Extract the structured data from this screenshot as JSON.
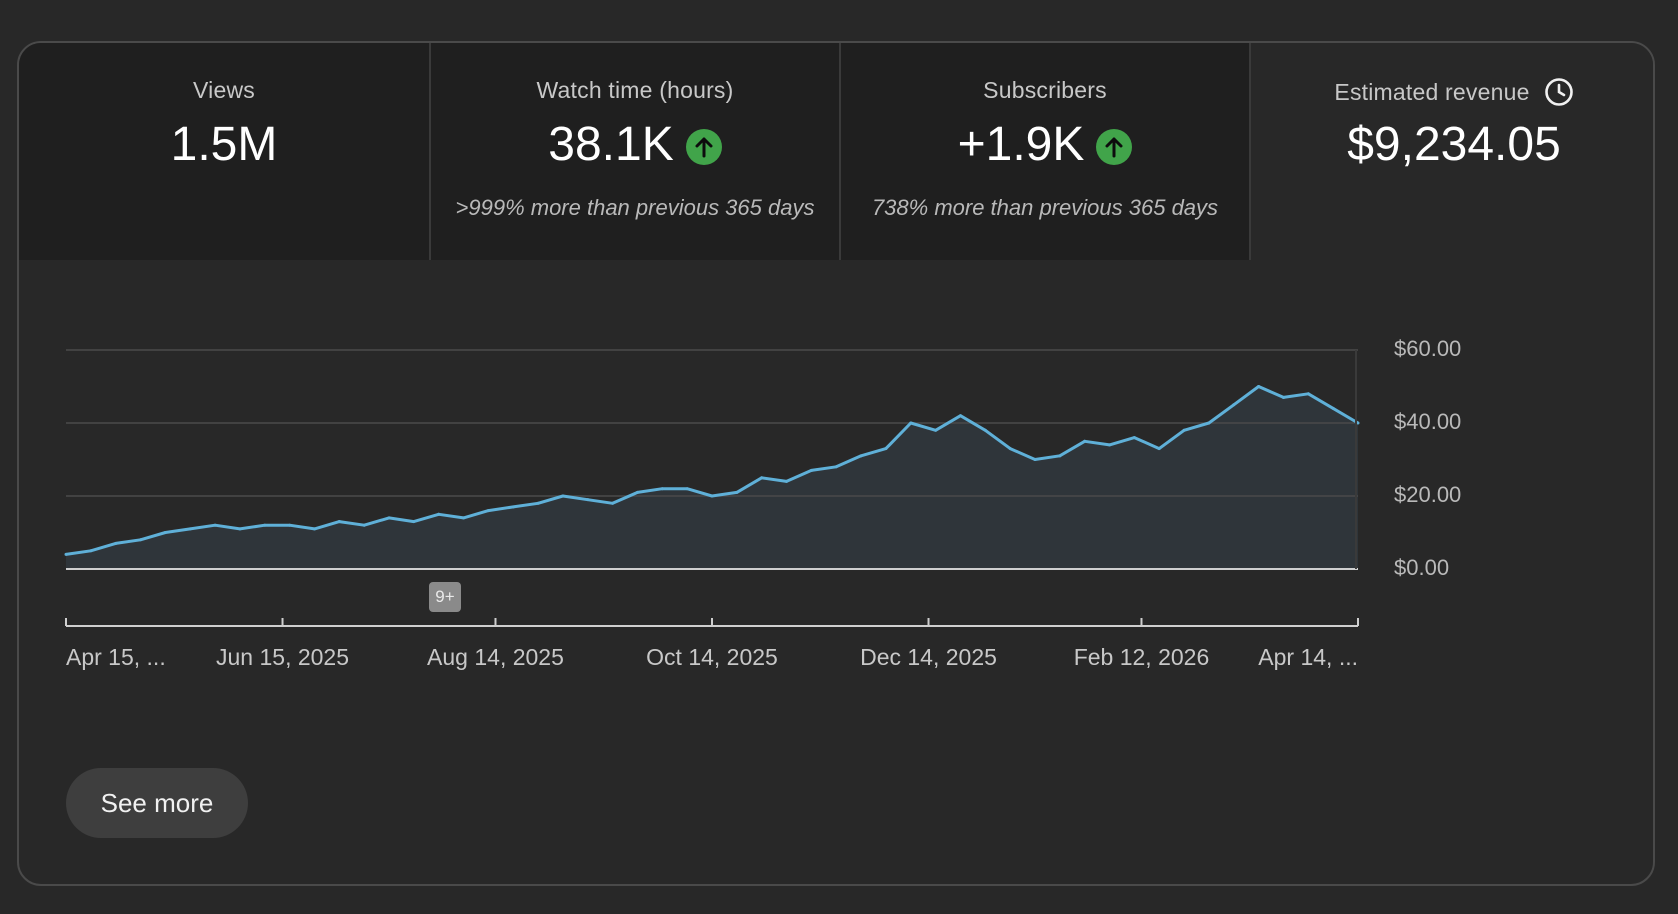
{
  "tabs": [
    {
      "label": "Views",
      "value": "1.5M",
      "trend": "",
      "sub": ""
    },
    {
      "label": "Watch time (hours)",
      "value": "38.1K",
      "trend": "up",
      "sub": ">999% more than previous 365 days"
    },
    {
      "label": "Subscribers",
      "value": "+1.9K",
      "trend": "up",
      "sub": "738% more than previous 365 days"
    },
    {
      "label": "Estimated revenue",
      "value": "$9,234.05",
      "trend": "",
      "sub": "",
      "icon": "clock-icon"
    }
  ],
  "colors": {
    "line": "#5fb0d8",
    "area": "#2f353a",
    "trend_up": "#41a44a"
  },
  "annotation": {
    "label": "9+"
  },
  "see_more_label": "See more",
  "chart_data": {
    "type": "area",
    "title": "",
    "xlabel": "",
    "ylabel": "",
    "ylim": [
      0,
      60
    ],
    "y_ticks": [
      "$0.00",
      "$20.00",
      "$40.00",
      "$60.00"
    ],
    "y_tick_values": [
      0,
      20,
      40,
      60
    ],
    "x_ticks": [
      "Apr 15, ...",
      "Jun 15, 2025",
      "Aug 14, 2025",
      "Oct 14, 2025",
      "Dec 14, 2025",
      "Feb 12, 2026",
      "Apr 14, ..."
    ],
    "x_tick_dates": [
      "2025-04-15",
      "2025-06-15",
      "2025-08-14",
      "2025-10-14",
      "2025-12-14",
      "2026-02-12",
      "2026-04-14"
    ],
    "grid": true,
    "series": [
      {
        "x": [
          "2025-04-15",
          "2025-04-22",
          "2025-04-29",
          "2025-05-06",
          "2025-05-13",
          "2025-05-20",
          "2025-05-27",
          "2025-06-03",
          "2025-06-10",
          "2025-06-17",
          "2025-06-24",
          "2025-07-01",
          "2025-07-08",
          "2025-07-15",
          "2025-07-22",
          "2025-07-29",
          "2025-08-05",
          "2025-08-12",
          "2025-08-19",
          "2025-08-26",
          "2025-09-02",
          "2025-09-09",
          "2025-09-16",
          "2025-09-23",
          "2025-09-30",
          "2025-10-07",
          "2025-10-14",
          "2025-10-21",
          "2025-10-28",
          "2025-11-04",
          "2025-11-11",
          "2025-11-18",
          "2025-11-25",
          "2025-12-02",
          "2025-12-09",
          "2025-12-16",
          "2025-12-23",
          "2025-12-30",
          "2026-01-06",
          "2026-01-13",
          "2026-01-20",
          "2026-01-27",
          "2026-02-03",
          "2026-02-10",
          "2026-02-17",
          "2026-02-24",
          "2026-03-03",
          "2026-03-10",
          "2026-03-17",
          "2026-03-24",
          "2026-03-31",
          "2026-04-07",
          "2026-04-14"
        ],
        "values": [
          4,
          5,
          7,
          8,
          10,
          11,
          12,
          11,
          12,
          12,
          11,
          13,
          12,
          14,
          13,
          15,
          14,
          16,
          17,
          18,
          20,
          19,
          18,
          21,
          22,
          22,
          20,
          21,
          25,
          24,
          27,
          28,
          31,
          33,
          40,
          38,
          42,
          38,
          33,
          30,
          31,
          35,
          34,
          36,
          33,
          38,
          40,
          45,
          50,
          47,
          48,
          44,
          40
        ]
      }
    ]
  }
}
